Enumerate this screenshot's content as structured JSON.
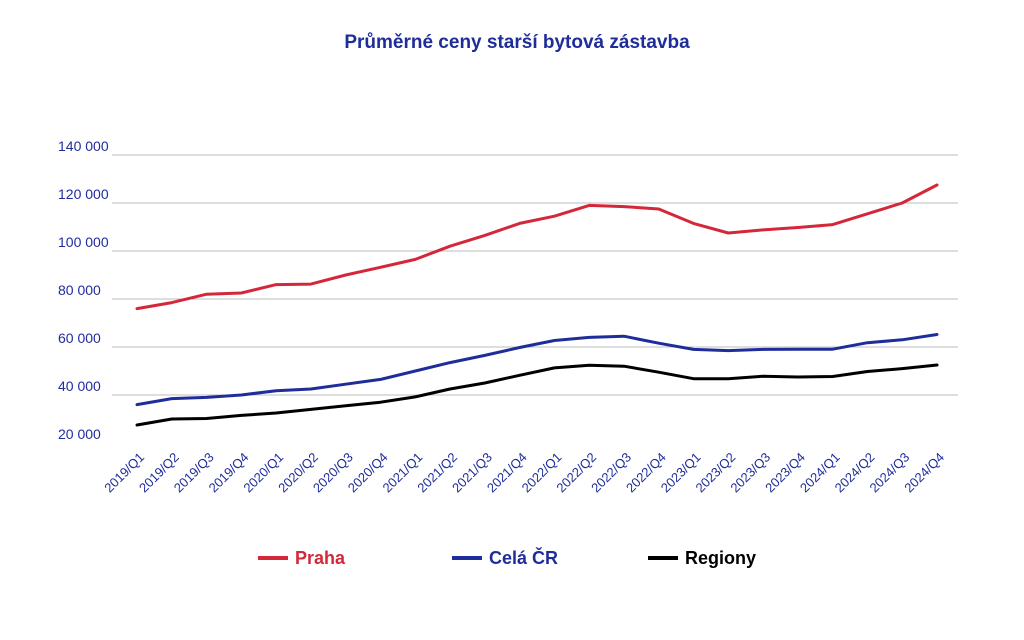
{
  "chart_data": {
    "type": "line",
    "title": "Průměrné ceny starší bytová zástavba",
    "xlabel": "",
    "ylabel": "",
    "ylim": [
      20000,
      140000
    ],
    "ytick_values": [
      20000,
      40000,
      60000,
      80000,
      100000,
      120000,
      140000
    ],
    "ytick_labels": [
      "20 000",
      "40 000",
      "60 000",
      "80 000",
      "100 000",
      "120 000",
      "140 000"
    ],
    "grid": true,
    "legend_position": "bottom",
    "categories": [
      "2019/Q1",
      "2019/Q2",
      "2019/Q3",
      "2019/Q4",
      "2020/Q1",
      "2020/Q2",
      "2020/Q3",
      "2020/Q4",
      "2021/Q1",
      "2021/Q2",
      "2021/Q3",
      "2021/Q4",
      "2022/Q1",
      "2022/Q2",
      "2022/Q3",
      "2022/Q4",
      "2023/Q1",
      "2023/Q2",
      "2023/Q3",
      "2023/Q4",
      "2024/Q1",
      "2024/Q2",
      "2024/Q3",
      "2024/Q4"
    ],
    "series": [
      {
        "name": "Praha",
        "color": "#d4273a",
        "values": [
          76000,
          78500,
          82000,
          82500,
          86000,
          86200,
          90000,
          93200,
          96500,
          102000,
          106500,
          111500,
          114500,
          119000,
          118500,
          117500,
          111500,
          107500,
          108800,
          109800,
          111000,
          115500,
          120000,
          127500
        ]
      },
      {
        "name": "Celá ČR",
        "color": "#1f2d9a",
        "values": [
          36000,
          38500,
          39000,
          40000,
          41800,
          42500,
          44500,
          46500,
          50000,
          53500,
          56500,
          59800,
          62700,
          64000,
          64500,
          61600,
          59000,
          58500,
          59000,
          59100,
          59100,
          61800,
          63000,
          65200
        ]
      },
      {
        "name": "Regiony",
        "color": "#000000",
        "values": [
          27500,
          30000,
          30200,
          31500,
          32500,
          34000,
          35500,
          37000,
          39200,
          42500,
          45000,
          48200,
          51300,
          52400,
          52000,
          49500,
          46800,
          46800,
          47800,
          47500,
          47700,
          49800,
          51000,
          52500
        ]
      }
    ]
  }
}
